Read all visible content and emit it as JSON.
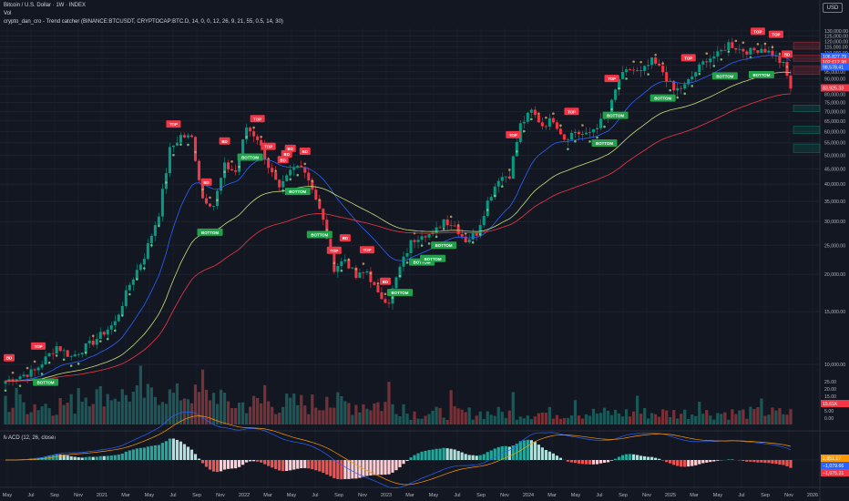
{
  "header": {
    "title": "Bitcoin / U.S. Dollar · 1W · INDEX",
    "vol_label": "Vol",
    "indicator_label": "crypto_dan_cro - Trend catcher (BINANCE:BTCUSDT, CRYPTOCAP:BTC.D, 14, 0, 0, 12, 26, 9, 21, 55, 0.5, 14, 30)",
    "currency": "USD"
  },
  "macd_label": "MACD (12, 26, close)",
  "chart_data": [
    {
      "type": "candlestick",
      "y_scale": "log",
      "ylim": [
        10000,
        140000
      ],
      "price_ticks": [
        "130,000.00",
        "125,000.00",
        "120,000.00",
        "115,000.00",
        "110,000.00",
        "105,000.00",
        "100,000.00",
        "95,000.00",
        "90,000.00",
        "85,000.00",
        "80,000.00",
        "75,000.00",
        "70,000.00",
        "65,000.00",
        "60,000.00",
        "55,000.00",
        "50,000.00",
        "45,000.00",
        "40,000.00",
        "35,000.00",
        "30,000.00",
        "25,000.00",
        "20,000.00",
        "15,000.00",
        "10,000.00"
      ],
      "x_labels": [
        "May",
        "Jul",
        "Sep",
        "Nov",
        "2021",
        "Mar",
        "May",
        "Jul",
        "Sep",
        "Nov",
        "2022",
        "Mar",
        "May",
        "Jul",
        "Sep",
        "Nov",
        "2023",
        "Mar",
        "May",
        "Jul",
        "Sep",
        "Nov",
        "2024",
        "Mar",
        "May",
        "Jul",
        "Sep",
        "Nov",
        "2025",
        "Mar",
        "May",
        "Jul",
        "Sep",
        "Nov",
        "2026"
      ],
      "price_badges": [
        {
          "text": "106,827.79",
          "color": "#2962ff"
        },
        {
          "text": "102,612.98",
          "color": "#f23645"
        },
        {
          "text": "98,578.41",
          "color": "#2962ff"
        },
        {
          "text": "83,925.33",
          "color": "#f23645"
        }
      ],
      "price_path": [
        [
          0,
          8800
        ],
        [
          8,
          9500
        ],
        [
          14,
          11500
        ],
        [
          18,
          10600
        ],
        [
          24,
          11900
        ],
        [
          30,
          13800
        ],
        [
          34,
          18500
        ],
        [
          38,
          23000
        ],
        [
          42,
          32000
        ],
        [
          45,
          52000
        ],
        [
          48,
          58000
        ],
        [
          51,
          57000
        ],
        [
          54,
          36000
        ],
        [
          57,
          34000
        ],
        [
          60,
          46000
        ],
        [
          63,
          44000
        ],
        [
          66,
          62000
        ],
        [
          69,
          57000
        ],
        [
          72,
          46000
        ],
        [
          75,
          38000
        ],
        [
          78,
          44000
        ],
        [
          81,
          47000
        ],
        [
          84,
          39000
        ],
        [
          87,
          30000
        ],
        [
          90,
          21000
        ],
        [
          93,
          22500
        ],
        [
          96,
          19500
        ],
        [
          99,
          20500
        ],
        [
          102,
          17000
        ],
        [
          105,
          16300
        ],
        [
          108,
          21000
        ],
        [
          111,
          25500
        ],
        [
          114,
          27500
        ],
        [
          117,
          27000
        ],
        [
          120,
          30500
        ],
        [
          123,
          29000
        ],
        [
          126,
          26000
        ],
        [
          129,
          27500
        ],
        [
          132,
          35000
        ],
        [
          135,
          42000
        ],
        [
          138,
          43000
        ],
        [
          141,
          63000
        ],
        [
          144,
          70000
        ],
        [
          147,
          63000
        ],
        [
          150,
          66000
        ],
        [
          153,
          57000
        ],
        [
          156,
          60000
        ],
        [
          159,
          58000
        ],
        [
          162,
          63000
        ],
        [
          165,
          68000
        ],
        [
          168,
          90000
        ],
        [
          171,
          97000
        ],
        [
          174,
          94000
        ],
        [
          177,
          103000
        ],
        [
          180,
          95000
        ],
        [
          183,
          82000
        ],
        [
          186,
          85000
        ],
        [
          189,
          95000
        ],
        [
          192,
          105000
        ],
        [
          195,
          108000
        ],
        [
          198,
          118000
        ],
        [
          201,
          113000
        ],
        [
          204,
          111000
        ],
        [
          207,
          114000
        ],
        [
          210,
          109000
        ],
        [
          213,
          100000
        ],
        [
          215,
          84000
        ]
      ],
      "signals": [
        {
          "label": "TOP",
          "i": 9
        },
        {
          "label": "BD",
          "i": 1
        },
        {
          "label": "BOTTOM",
          "i": 11
        },
        {
          "label": "TOP",
          "i": 46
        },
        {
          "label": "BD",
          "i": 55
        },
        {
          "label": "BOTTOM",
          "i": 56
        },
        {
          "label": "BD",
          "i": 60
        },
        {
          "label": "BOTTOM",
          "i": 67
        },
        {
          "label": "TOP",
          "i": 72
        },
        {
          "label": "BD",
          "i": 76
        },
        {
          "label": "BD",
          "i": 77
        },
        {
          "label": "BD",
          "i": 78
        },
        {
          "label": "BOTTOM",
          "i": 80
        },
        {
          "label": "BD",
          "i": 82
        },
        {
          "label": "TOP",
          "i": 90
        },
        {
          "label": "BOTTOM",
          "i": 86
        },
        {
          "label": "BD",
          "i": 93
        },
        {
          "label": "TOP",
          "i": 69
        },
        {
          "label": "BOTTOM",
          "i": 114
        },
        {
          "label": "TOP",
          "i": 99
        },
        {
          "label": "BD",
          "i": 104
        },
        {
          "label": "BOTTOM",
          "i": 108
        },
        {
          "label": "BOTTOM",
          "i": 120
        },
        {
          "label": "BOTTOM",
          "i": 117
        },
        {
          "label": "TOP",
          "i": 139
        },
        {
          "label": "TOP",
          "i": 155
        },
        {
          "label": "TOP",
          "i": 166
        },
        {
          "label": "BOTTOM",
          "i": 164
        },
        {
          "label": "BOTTOM",
          "i": 180
        },
        {
          "label": "BOTTOM",
          "i": 197
        },
        {
          "label": "TOP",
          "i": 187
        },
        {
          "label": "TOP",
          "i": 206
        },
        {
          "label": "BOTTOM",
          "i": 207
        },
        {
          "label": "BOTTOM",
          "i": 167
        },
        {
          "label": "TOP",
          "i": 211
        },
        {
          "label": "BD",
          "i": 214
        }
      ]
    },
    {
      "type": "bar",
      "name": "Vol",
      "y_ticks": [
        "25.00",
        "20.00",
        "15.00",
        "10.00",
        "5.00",
        "0.00"
      ],
      "badge": "15.61K"
    },
    {
      "type": "bar",
      "name": "MACD",
      "badges": [
        {
          "text": "2,851.17",
          "color": "#ff9800"
        },
        {
          "text": "−1,079.66",
          "color": "#2962ff"
        },
        {
          "text": "−1,075.21",
          "color": "#f23645"
        }
      ]
    }
  ]
}
